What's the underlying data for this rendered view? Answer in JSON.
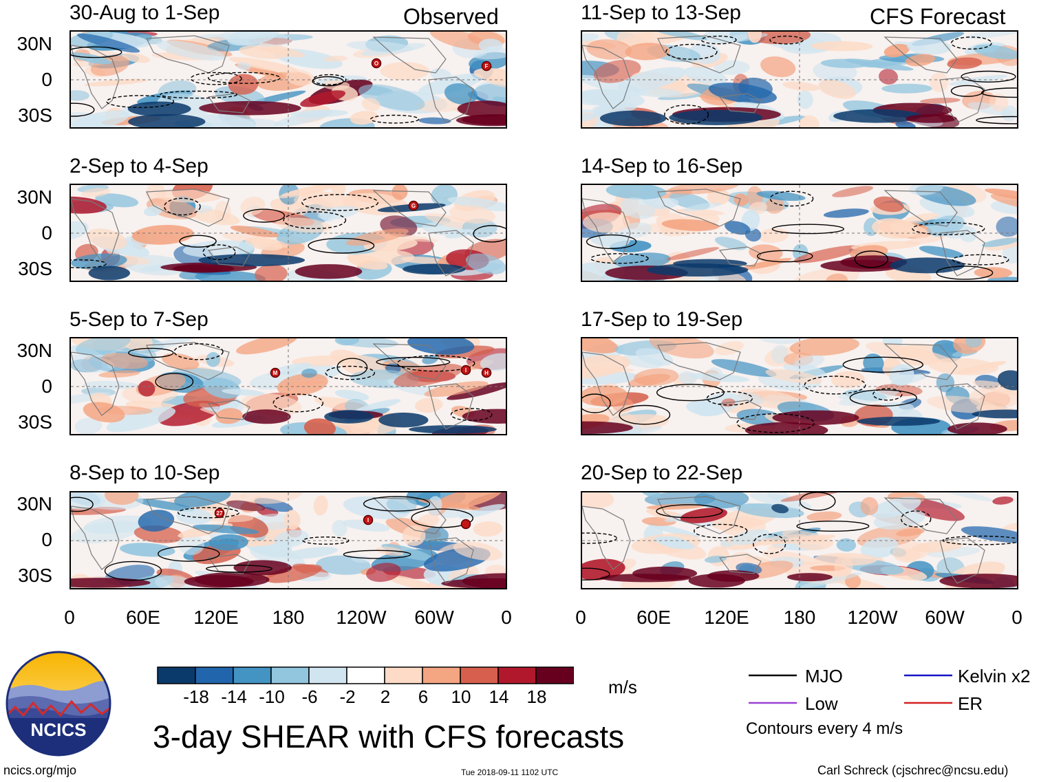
{
  "header": {
    "observed_label": "Observed",
    "forecast_label": "CFS Forecast"
  },
  "chart_data": {
    "type": "heatmap",
    "title": "3-day SHEAR with CFS forecasts",
    "units": "m/s",
    "lat_ticks": [
      "30N",
      "0",
      "30S"
    ],
    "lon_ticks": [
      "0",
      "60E",
      "120E",
      "180",
      "120W",
      "60W",
      "0"
    ],
    "colorbar": {
      "levels": [
        "-18",
        "-14",
        "-10",
        "-6",
        "-2",
        "2",
        "6",
        "10",
        "14",
        "18"
      ],
      "colors": [
        "#0a3a6b",
        "#2166ac",
        "#4393c3",
        "#92c5de",
        "#d1e5f0",
        "#ffffff",
        "#fddbc7",
        "#f4a582",
        "#d6604d",
        "#b2182b",
        "#67001f"
      ]
    },
    "panels": [
      {
        "period": "30-Aug to 1-Sep",
        "group": "Observed",
        "storms": [
          "O",
          "F"
        ]
      },
      {
        "period": "2-Sep to 4-Sep",
        "group": "Observed",
        "storms": [
          "G"
        ]
      },
      {
        "period": "5-Sep to 7-Sep",
        "group": "Observed",
        "storms": [
          "M",
          "I",
          "H"
        ]
      },
      {
        "period": "8-Sep to 10-Sep",
        "group": "Observed",
        "storms": [
          "27",
          "I"
        ]
      },
      {
        "period": "11-Sep to 13-Sep",
        "group": "CFS Forecast",
        "storms": []
      },
      {
        "period": "14-Sep to 16-Sep",
        "group": "CFS Forecast",
        "storms": []
      },
      {
        "period": "17-Sep to 19-Sep",
        "group": "CFS Forecast",
        "storms": []
      },
      {
        "period": "20-Sep to 22-Sep",
        "group": "CFS Forecast",
        "storms": []
      }
    ],
    "legend": {
      "items": [
        {
          "label": "MJO",
          "color": "#000000"
        },
        {
          "label": "Kelvin x2",
          "color": "#1515c8"
        },
        {
          "label": "Low",
          "color": "#9a3fd6"
        },
        {
          "label": "ER",
          "color": "#d42020"
        }
      ],
      "note": "Contours every 4 m/s"
    }
  },
  "logo": {
    "text": "NCICS"
  },
  "footer": {
    "url": "ncics.org/mjo",
    "timestamp": "Tue 2018-09-11 1102 UTC",
    "credit": "Carl Schreck (cjschrec@ncsu.edu)"
  }
}
